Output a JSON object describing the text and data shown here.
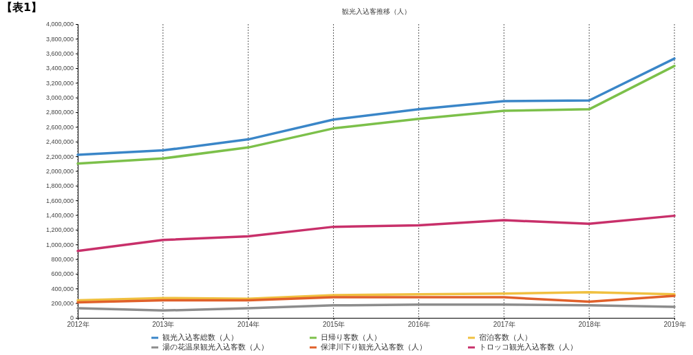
{
  "chart_data": {
    "type": "line",
    "title": "観光入込客推移（人）",
    "annotations": [
      "【表1】"
    ],
    "categories": [
      "2012年",
      "2013年",
      "2014年",
      "2015年",
      "2016年",
      "2017年",
      "2018年",
      "2019年"
    ],
    "ylim": [
      0,
      4000000
    ],
    "yticks": [
      {
        "value": 0,
        "label": "0"
      },
      {
        "value": 200000,
        "label": "200,000"
      },
      {
        "value": 400000,
        "label": "400,000"
      },
      {
        "value": 600000,
        "label": "600,000"
      },
      {
        "value": 800000,
        "label": "800,000"
      },
      {
        "value": 1000000,
        "label": "1,000,000"
      },
      {
        "value": 1200000,
        "label": "1,200,000"
      },
      {
        "value": 1400000,
        "label": "1,400,000"
      },
      {
        "value": 1600000,
        "label": "1,600,000"
      },
      {
        "value": 1800000,
        "label": "1,800,000"
      },
      {
        "value": 2000000,
        "label": "2,000,000"
      },
      {
        "value": 2200000,
        "label": "2,200,000"
      },
      {
        "value": 2400000,
        "label": "2,400,000"
      },
      {
        "value": 2600000,
        "label": "2,600,000"
      },
      {
        "value": 2800000,
        "label": "2,800,000"
      },
      {
        "value": 3000000,
        "label": "3,000,000"
      },
      {
        "value": 3200000,
        "label": "3,200,000"
      },
      {
        "value": 3400000,
        "label": "3,400,000"
      },
      {
        "value": 3600000,
        "label": "3,600,000"
      },
      {
        "value": 3800000,
        "label": "3,800,000"
      },
      {
        "value": 4000000,
        "label": "4,000,000"
      }
    ],
    "grid": "x",
    "legend": "bottom",
    "marker": "none",
    "line_style": "solid",
    "series": [
      {
        "name": "観光入込客総数（人）",
        "color": "#3a86c8",
        "values": [
          2220000,
          2280000,
          2430000,
          2700000,
          2840000,
          2950000,
          2960000,
          3530000
        ]
      },
      {
        "name": "日帰り客数（人）",
        "color": "#7cc04a",
        "values": [
          2100000,
          2170000,
          2320000,
          2580000,
          2710000,
          2820000,
          2840000,
          3430000
        ]
      },
      {
        "name": "宿泊客数（人）",
        "color": "#f0c040",
        "values": [
          240000,
          270000,
          260000,
          310000,
          320000,
          330000,
          350000,
          320000
        ]
      },
      {
        "name": "湯の花温泉観光入込客数（人）",
        "color": "#8c8c8c",
        "values": [
          130000,
          100000,
          130000,
          170000,
          180000,
          180000,
          170000,
          150000
        ]
      },
      {
        "name": "保津川下り観光入込客数（人）",
        "color": "#e0602a",
        "values": [
          210000,
          240000,
          240000,
          280000,
          280000,
          280000,
          220000,
          300000
        ]
      },
      {
        "name": "トロッコ観光入込客数（人）",
        "color": "#c8306a",
        "values": [
          910000,
          1060000,
          1110000,
          1240000,
          1260000,
          1330000,
          1280000,
          1390000
        ]
      }
    ]
  }
}
